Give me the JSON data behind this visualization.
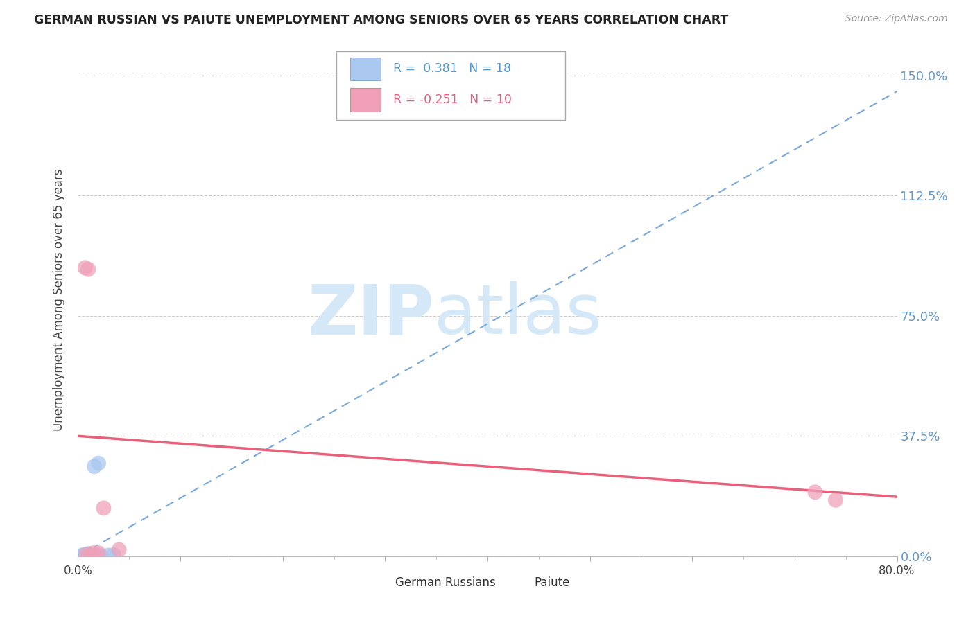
{
  "title": "GERMAN RUSSIAN VS PAIUTE UNEMPLOYMENT AMONG SENIORS OVER 65 YEARS CORRELATION CHART",
  "source": "Source: ZipAtlas.com",
  "ylabel": "Unemployment Among Seniors over 65 years",
  "xlim": [
    0.0,
    0.8
  ],
  "ylim": [
    0.0,
    1.6
  ],
  "yticks": [
    0.0,
    0.375,
    0.75,
    1.125,
    1.5
  ],
  "ytick_labels": [
    "0.0%",
    "37.5%",
    "75.0%",
    "112.5%",
    "150.0%"
  ],
  "xticks": [
    0.0,
    0.1,
    0.2,
    0.3,
    0.4,
    0.5,
    0.6,
    0.7,
    0.8
  ],
  "xtick_labels": [
    "0.0%",
    "",
    "",
    "",
    "",
    "",
    "",
    "",
    "80.0%"
  ],
  "legend_label1": "German Russians",
  "legend_label2": "Paiute",
  "r1": 0.381,
  "n1": 18,
  "r2": -0.251,
  "n2": 10,
  "gr_x": [
    0.002,
    0.004,
    0.005,
    0.006,
    0.007,
    0.008,
    0.009,
    0.01,
    0.011,
    0.012,
    0.013,
    0.015,
    0.016,
    0.018,
    0.02,
    0.022,
    0.03,
    0.035
  ],
  "gr_y": [
    0.0,
    0.002,
    0.003,
    0.005,
    0.0,
    0.005,
    0.002,
    0.008,
    0.004,
    0.0,
    0.005,
    0.003,
    0.28,
    0.005,
    0.29,
    0.002,
    0.003,
    0.004
  ],
  "pa_x": [
    0.007,
    0.01,
    0.012,
    0.015,
    0.025,
    0.04,
    0.72,
    0.74,
    0.008,
    0.02
  ],
  "pa_y": [
    0.9,
    0.895,
    0.005,
    0.01,
    0.15,
    0.02,
    0.2,
    0.175,
    0.005,
    0.01
  ],
  "blue_color": "#aac8f0",
  "pink_color": "#f0a0b8",
  "blue_line_color": "#7aaadd",
  "pink_line_color": "#e8607a",
  "blue_text_color": "#5599cc",
  "pink_text_color": "#e06080",
  "right_tick_color": "#6699cc",
  "watermark_color": "#d4e8f8",
  "background_color": "#ffffff",
  "grid_color": "#cccccc",
  "title_color": "#222222",
  "source_color": "#999999"
}
